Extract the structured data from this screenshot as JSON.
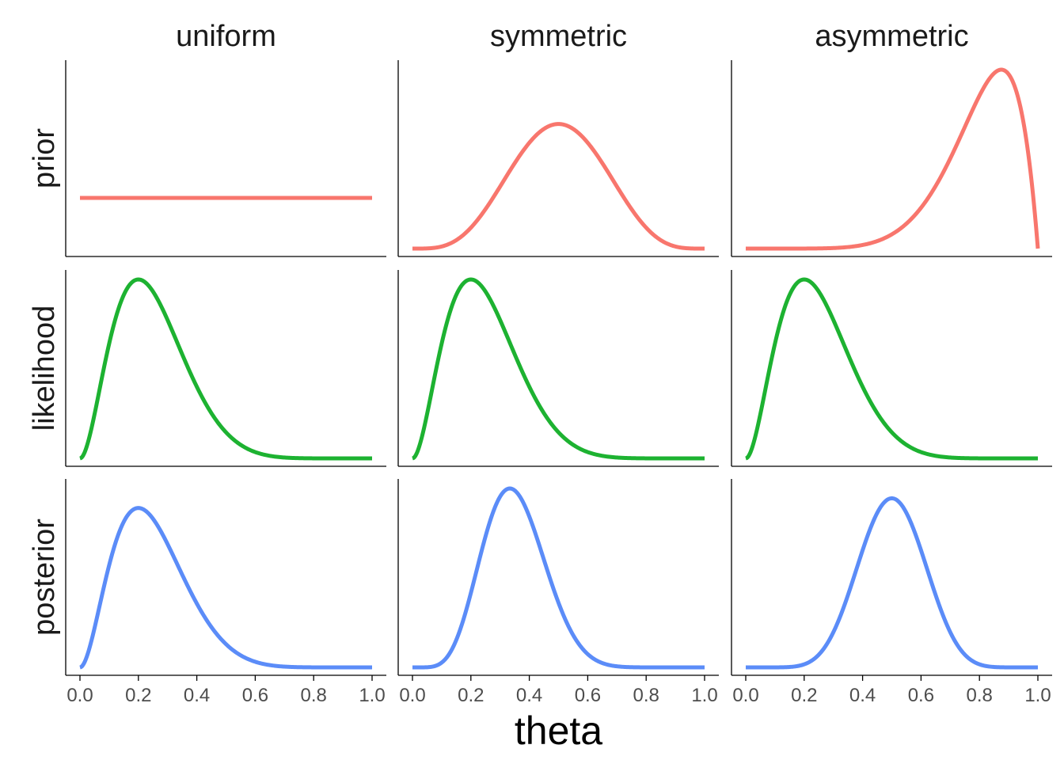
{
  "chart_data": {
    "type": "line",
    "facet_layout": "grid",
    "column_labels": [
      "uniform",
      "symmetric",
      "asymmetric"
    ],
    "row_labels": [
      "prior",
      "likelihood",
      "posterior"
    ],
    "xlabel": "theta",
    "ylabel": "",
    "xlim": [
      0,
      1
    ],
    "x_ticks": [
      "0.0",
      "0.2",
      "0.4",
      "0.6",
      "0.8",
      "1.0"
    ],
    "y_axis_ticks_shown": false,
    "grid": false,
    "legend": "none",
    "colors": {
      "prior": "#F8766D",
      "likelihood": "#1DB231",
      "posterior": "#5B8CF8"
    },
    "panels": [
      {
        "column": "uniform",
        "row": "prior",
        "distribution": "Beta(1,1)",
        "peak_theta": null
      },
      {
        "column": "symmetric",
        "row": "prior",
        "distribution": "Beta(5,5)",
        "peak_theta": 0.5
      },
      {
        "column": "asymmetric",
        "row": "prior",
        "distribution": "Beta(8,2)",
        "peak_theta": 0.875
      },
      {
        "column": "uniform",
        "row": "likelihood",
        "distribution": "Beta(3,9)",
        "peak_theta": 0.2
      },
      {
        "column": "symmetric",
        "row": "likelihood",
        "distribution": "Beta(3,9)",
        "peak_theta": 0.2
      },
      {
        "column": "asymmetric",
        "row": "likelihood",
        "distribution": "Beta(3,9)",
        "peak_theta": 0.2
      },
      {
        "column": "uniform",
        "row": "posterior",
        "distribution": "Beta(3,9)",
        "peak_theta": 0.2
      },
      {
        "column": "symmetric",
        "row": "posterior",
        "distribution": "Beta(7,13)",
        "peak_theta": 0.333
      },
      {
        "column": "asymmetric",
        "row": "posterior",
        "distribution": "Beta(10,10)",
        "peak_theta": 0.5
      }
    ]
  }
}
